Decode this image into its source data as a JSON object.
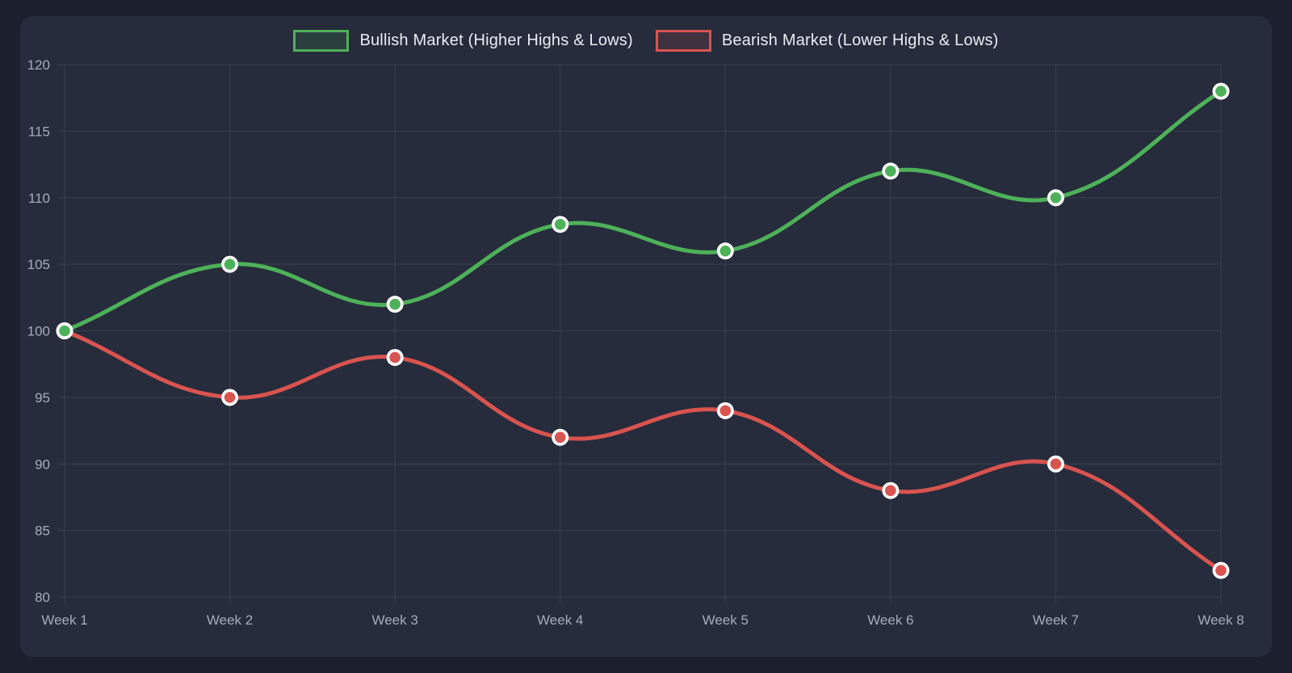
{
  "colors": {
    "page_bg": "#1b202c",
    "card_bg": "#262c3b",
    "grid": "#3a4150",
    "tick_text": "#a4acba",
    "legend_text": "#e9ecf1",
    "point_ring": "#ffffff",
    "bullish": "#4db159",
    "bearish": "#d9534f"
  },
  "chart_data": {
    "type": "line",
    "x_labels": [
      "Week 1",
      "Week 2",
      "Week 3",
      "Week 4",
      "Week 5",
      "Week 6",
      "Week 7",
      "Week 8"
    ],
    "y_ticks": [
      80,
      85,
      90,
      95,
      100,
      105,
      110,
      115,
      120
    ],
    "ylim": [
      80,
      120
    ],
    "grid": true,
    "legend_position": "top",
    "curve": "smooth",
    "series": [
      {
        "name": "Bullish Market (Higher Highs & Lows)",
        "color": "#4db159",
        "values": [
          100,
          105,
          102,
          108,
          106,
          112,
          110,
          118
        ]
      },
      {
        "name": "Bearish Market (Lower Highs & Lows)",
        "color": "#d9534f",
        "values": [
          100,
          95,
          98,
          92,
          94,
          88,
          90,
          82
        ]
      }
    ]
  }
}
